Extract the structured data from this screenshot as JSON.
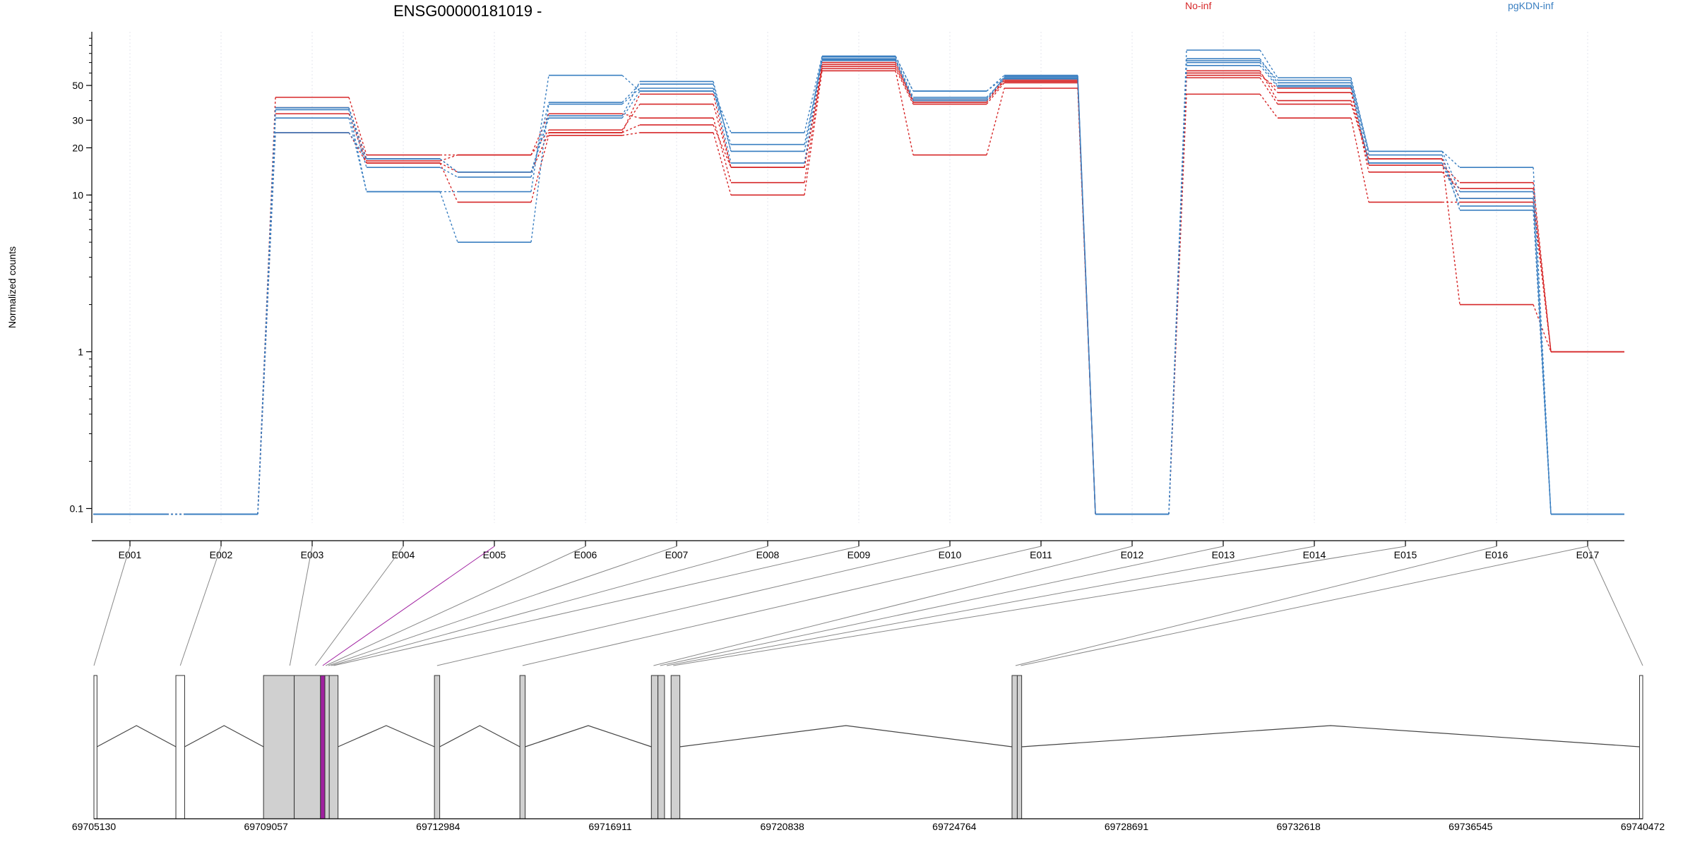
{
  "chart_data": {
    "type": "line",
    "title": "ENSG00000181019 -",
    "ylabel": "Normalized counts",
    "yscale": "log",
    "ylim": [
      0.08,
      110
    ],
    "y_ticks": [
      {
        "v": 0.1,
        "label": "0.1"
      },
      {
        "v": 1,
        "label": "1"
      },
      {
        "v": 10,
        "label": "10"
      },
      {
        "v": 20,
        "label": "20"
      },
      {
        "v": 30,
        "label": "30"
      },
      {
        "v": 50,
        "label": "50"
      }
    ],
    "categories": [
      "E001",
      "E002",
      "E003",
      "E004",
      "E005",
      "E006",
      "E007",
      "E008",
      "E009",
      "E010",
      "E011",
      "E012",
      "E013",
      "E014",
      "E015",
      "E016",
      "E017"
    ],
    "legend": [
      {
        "label": "No-inf",
        "color": "#d62728"
      },
      {
        "label": "pgKDN-inf",
        "color": "#3a7fc1"
      }
    ],
    "series": [
      {
        "group": "No-inf",
        "color": "#d62728",
        "values": [
          0.092,
          0.092,
          42,
          18,
          18,
          26,
          38,
          15,
          70,
          40,
          55,
          0.092,
          62,
          40,
          17,
          9.5,
          1
        ]
      },
      {
        "group": "No-inf",
        "color": "#d62728",
        "values": [
          0.092,
          0.092,
          36,
          16.5,
          18,
          33,
          31,
          12,
          66,
          39,
          54,
          0.092,
          60,
          45,
          15.5,
          12,
          1
        ]
      },
      {
        "group": "No-inf",
        "color": "#d62728",
        "values": [
          0.092,
          0.092,
          33,
          16,
          14,
          25,
          28,
          15,
          64,
          38,
          52,
          0.092,
          58,
          48,
          14,
          11,
          1
        ]
      },
      {
        "group": "No-inf",
        "color": "#d62728",
        "values": [
          0.092,
          0.092,
          25,
          16,
          9,
          24,
          25,
          10,
          62,
          18,
          48,
          0.092,
          44,
          31,
          9,
          9,
          1
        ]
      },
      {
        "group": "No-inf",
        "color": "#d62728",
        "values": [
          0.092,
          0.092,
          36,
          17,
          14,
          25,
          44,
          15,
          68,
          40,
          53,
          0.092,
          56,
          38,
          17,
          2,
          1
        ]
      },
      {
        "group": "pgKDN-inf",
        "color": "#3a7fc1",
        "values": [
          0.092,
          0.092,
          36,
          17,
          14,
          31,
          46,
          25,
          77,
          46,
          58,
          0.092,
          84,
          56,
          19,
          15,
          0.092
        ]
      },
      {
        "group": "pgKDN-inf",
        "color": "#3a7fc1",
        "values": [
          0.092,
          0.092,
          36,
          15,
          13,
          39,
          51,
          19,
          76,
          46,
          56,
          0.092,
          72,
          54,
          19,
          10.5,
          0.092
        ]
      },
      {
        "group": "pgKDN-inf",
        "color": "#3a7fc1",
        "values": [
          0.092,
          0.092,
          31,
          10.5,
          10.5,
          58,
          46,
          21,
          72,
          40,
          57,
          0.092,
          70,
          50,
          16,
          8.5,
          0.092
        ]
      },
      {
        "group": "pgKDN-inf",
        "color": "#3a7fc1",
        "values": [
          0.092,
          0.092,
          35,
          10.5,
          5,
          38,
          48,
          16,
          74,
          42,
          55,
          0.092,
          67,
          49,
          16,
          9.5,
          0.092
        ]
      },
      {
        "group": "pgKDN-inf",
        "color": "#3a7fc1",
        "values": [
          0.092,
          0.092,
          25,
          17,
          14,
          32,
          53,
          19,
          73,
          41,
          56,
          0.092,
          74,
          52,
          18,
          8,
          0.092
        ]
      }
    ],
    "gene_model": {
      "coord_range": [
        69705130,
        69740472
      ],
      "coord_ticks": [
        "69705130",
        "69709057",
        "69712984",
        "69716911",
        "69720838",
        "69724764",
        "69728691",
        "69732618",
        "69736545",
        "69740472"
      ],
      "exons": [
        {
          "start": 69705130,
          "end": 69705200,
          "fill": "#ffffff"
        },
        {
          "start": 69707000,
          "end": 69707200,
          "fill": "#ffffff"
        },
        {
          "start": 69709000,
          "end": 69709700,
          "fill": "#d0d0d0"
        },
        {
          "start": 69709700,
          "end": 69710300,
          "fill": "#d0d0d0"
        },
        {
          "start": 69710300,
          "end": 69710400,
          "fill": "#a020a0"
        },
        {
          "start": 69710400,
          "end": 69710500,
          "fill": "#d0d0d0"
        },
        {
          "start": 69710500,
          "end": 69710700,
          "fill": "#d0d0d0"
        },
        {
          "start": 69712900,
          "end": 69713020,
          "fill": "#d0d0d0"
        },
        {
          "start": 69714850,
          "end": 69714970,
          "fill": "#d0d0d0"
        },
        {
          "start": 69717850,
          "end": 69718000,
          "fill": "#d0d0d0"
        },
        {
          "start": 69718000,
          "end": 69718150,
          "fill": "#d0d0d0"
        },
        {
          "start": 69718300,
          "end": 69718500,
          "fill": "#d0d0d0"
        },
        {
          "start": 69726080,
          "end": 69726200,
          "fill": "#d0d0d0"
        },
        {
          "start": 69726200,
          "end": 69726300,
          "fill": "#d0d0d0"
        },
        {
          "start": 69740400,
          "end": 69740472,
          "fill": "#ffffff"
        }
      ],
      "introns": [
        [
          69705200,
          69707000
        ],
        [
          69707200,
          69709000
        ],
        [
          69710700,
          69712900
        ],
        [
          69713020,
          69714850
        ],
        [
          69714970,
          69717850
        ],
        [
          69718500,
          69726080
        ],
        [
          69726300,
          69740400
        ]
      ],
      "exon_links": [
        69705130,
        69707100,
        69709600,
        69710180,
        69710350,
        69710420,
        69710480,
        69710540,
        69710600,
        69712960,
        69714910,
        69717900,
        69718050,
        69718200,
        69718350,
        69726160,
        69726280,
        69740472
      ],
      "highlight_category": "E005",
      "highlight_color": "#a020a0"
    }
  }
}
